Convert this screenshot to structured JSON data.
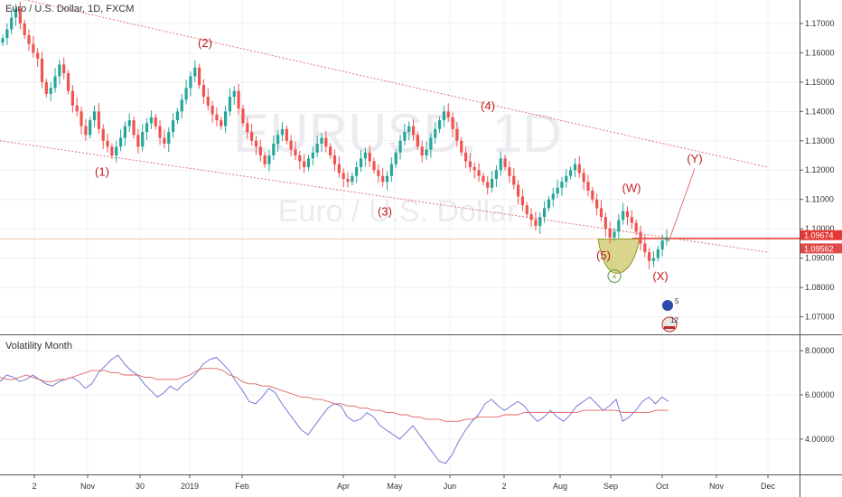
{
  "header": {
    "symbol_title": "Euro / U.S. Dollar, 1D, FXCM"
  },
  "watermark": {
    "ticker": "EURUSD, 1D",
    "name": "Euro / U.S. Dollar"
  },
  "indicator": {
    "title": "Volatility Month"
  },
  "chart_data": [
    {
      "type": "candlestick",
      "title": "Euro / U.S. Dollar, 1D, FXCM",
      "y_axis_ticks": [
        "1.17000",
        "1.16000",
        "1.15000",
        "1.14000",
        "1.13000",
        "1.12000",
        "1.11000",
        "1.10000",
        "1.09000",
        "1.08000",
        "1.07000"
      ],
      "ylim": [
        1.064,
        1.178
      ],
      "x_axis_ticks": [
        "2",
        "Nov",
        "30",
        "2019",
        "Feb",
        "Apr",
        "May",
        "Jun",
        "2",
        "Aug",
        "Sep",
        "Oct",
        "Nov",
        "Dec"
      ],
      "price_labels": {
        "current": "1.09674",
        "second": "1.09562"
      },
      "wave_labels": [
        "(1)",
        "(2)",
        "(3)",
        "(4)",
        "(5)",
        "(W)",
        "(X)",
        "(Y)"
      ],
      "close_series": [
        1.165,
        1.168,
        1.172,
        1.175,
        1.17,
        1.166,
        1.163,
        1.16,
        1.158,
        1.15,
        1.146,
        1.148,
        1.152,
        1.156,
        1.153,
        1.147,
        1.142,
        1.14,
        1.135,
        1.132,
        1.137,
        1.14,
        1.134,
        1.13,
        1.128,
        1.125,
        1.128,
        1.131,
        1.135,
        1.137,
        1.132,
        1.128,
        1.133,
        1.136,
        1.138,
        1.135,
        1.131,
        1.129,
        1.133,
        1.137,
        1.14,
        1.144,
        1.148,
        1.152,
        1.155,
        1.149,
        1.145,
        1.142,
        1.139,
        1.137,
        1.135,
        1.14,
        1.145,
        1.147,
        1.141,
        1.136,
        1.133,
        1.13,
        1.128,
        1.125,
        1.122,
        1.125,
        1.129,
        1.132,
        1.134,
        1.13,
        1.127,
        1.125,
        1.123,
        1.121,
        1.124,
        1.126,
        1.129,
        1.131,
        1.128,
        1.125,
        1.122,
        1.119,
        1.117,
        1.116,
        1.118,
        1.121,
        1.124,
        1.126,
        1.123,
        1.12,
        1.118,
        1.116,
        1.118,
        1.122,
        1.126,
        1.13,
        1.133,
        1.135,
        1.132,
        1.128,
        1.125,
        1.127,
        1.131,
        1.134,
        1.137,
        1.14,
        1.138,
        1.134,
        1.13,
        1.126,
        1.123,
        1.121,
        1.12,
        1.118,
        1.116,
        1.114,
        1.117,
        1.12,
        1.124,
        1.121,
        1.118,
        1.115,
        1.111,
        1.108,
        1.105,
        1.103,
        1.101,
        1.104,
        1.107,
        1.11,
        1.112,
        1.114,
        1.116,
        1.118,
        1.12,
        1.122,
        1.119,
        1.116,
        1.113,
        1.11,
        1.107,
        1.104,
        1.1,
        1.097,
        1.099,
        1.103,
        1.106,
        1.104,
        1.102,
        1.099,
        1.095,
        1.092,
        1.089,
        1.09,
        1.093,
        1.096,
        1.097
      ],
      "overlays": {
        "upper_channel": {
          "x": [
            "2",
            "Dec"
          ],
          "y": [
            1.18,
            1.121
          ]
        },
        "lower_channel": {
          "x": [
            "2",
            "Dec"
          ],
          "y": [
            1.13,
            1.092
          ]
        },
        "horizontal_line": 1.0967,
        "projection_target": "(Y)"
      }
    },
    {
      "type": "line",
      "title": "Volatility Month",
      "y_axis_ticks": [
        "8.00000",
        "6.00000",
        "4.00000"
      ],
      "ylim": [
        2.4,
        8.7
      ],
      "series": [
        {
          "color": "#6b6bd6",
          "values": [
            6.6,
            6.9,
            6.8,
            6.6,
            6.7,
            6.9,
            6.7,
            6.5,
            6.4,
            6.6,
            6.7,
            6.8,
            6.6,
            6.3,
            6.5,
            7.0,
            7.3,
            7.6,
            7.8,
            7.4,
            7.1,
            6.9,
            6.5,
            6.2,
            5.9,
            6.1,
            6.4,
            6.2,
            6.5,
            6.7,
            7.0,
            7.4,
            7.6,
            7.7,
            7.4,
            7.1,
            6.6,
            6.2,
            5.7,
            5.6,
            5.9,
            6.3,
            6.1,
            5.6,
            5.2,
            4.8,
            4.4,
            4.2,
            4.6,
            5.0,
            5.4,
            5.6,
            5.5,
            5.0,
            4.8,
            4.9,
            5.2,
            5.0,
            4.6,
            4.4,
            4.2,
            4.0,
            4.3,
            4.6,
            4.2,
            3.8,
            3.4,
            3.0,
            2.9,
            3.3,
            3.9,
            4.4,
            4.8,
            5.1,
            5.6,
            5.8,
            5.5,
            5.3,
            5.5,
            5.7,
            5.5,
            5.1,
            4.8,
            5.0,
            5.3,
            5.0,
            4.8,
            5.1,
            5.5,
            5.7,
            5.9,
            5.6,
            5.3,
            5.5,
            5.8,
            4.8,
            5.0,
            5.3,
            5.7,
            5.9,
            5.6,
            5.9,
            5.7
          ]
        },
        {
          "color": "#e06262",
          "values": [
            6.8,
            6.7,
            6.7,
            6.8,
            6.9,
            6.8,
            6.7,
            6.6,
            6.6,
            6.7,
            6.7,
            6.8,
            6.9,
            7.0,
            7.1,
            7.1,
            7.1,
            7.0,
            7.0,
            6.9,
            6.9,
            6.9,
            6.8,
            6.8,
            6.7,
            6.7,
            6.7,
            6.7,
            6.8,
            6.9,
            7.1,
            7.2,
            7.2,
            7.2,
            7.1,
            6.9,
            6.8,
            6.6,
            6.5,
            6.5,
            6.4,
            6.4,
            6.3,
            6.2,
            6.1,
            6.0,
            5.9,
            5.9,
            5.8,
            5.8,
            5.7,
            5.6,
            5.6,
            5.5,
            5.5,
            5.4,
            5.4,
            5.3,
            5.3,
            5.2,
            5.2,
            5.1,
            5.1,
            5.0,
            5.0,
            4.9,
            4.9,
            4.9,
            4.8,
            4.8,
            4.8,
            4.9,
            4.9,
            5.0,
            5.0,
            5.0,
            5.0,
            5.1,
            5.1,
            5.1,
            5.2,
            5.2,
            5.2,
            5.2,
            5.2,
            5.2,
            5.2,
            5.2,
            5.2,
            5.3,
            5.3,
            5.3,
            5.3,
            5.3,
            5.3,
            5.2,
            5.2,
            5.2,
            5.2,
            5.2,
            5.3,
            5.3,
            5.3
          ]
        }
      ]
    }
  ],
  "colors": {
    "up": "#26a69a",
    "down": "#ef5350",
    "wave_label": "#c11b1b",
    "price_line": "#e53935",
    "channel": "#e57373",
    "zone_fill": "#b9b32f"
  },
  "event_badges": [
    "5",
    "12"
  ]
}
